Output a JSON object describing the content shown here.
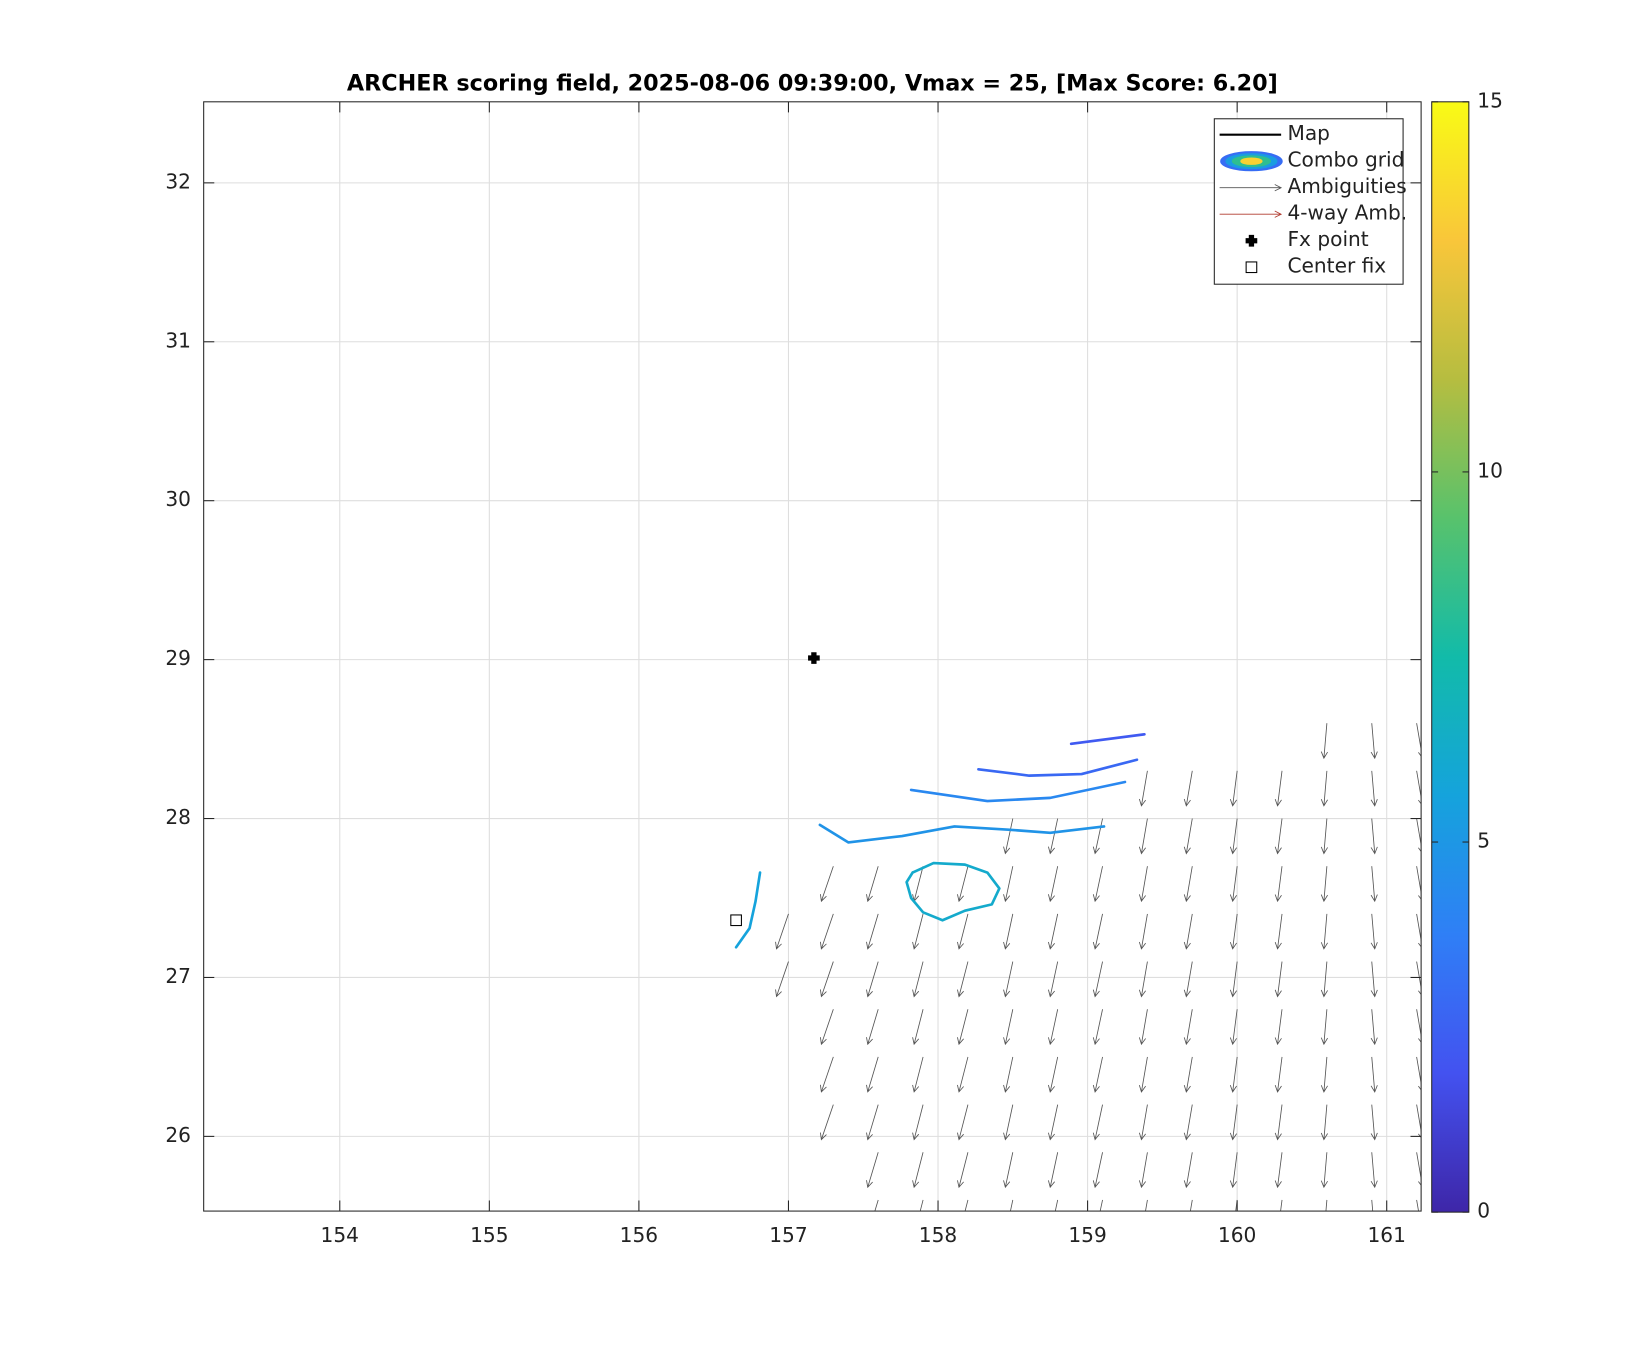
{
  "chart_data": {
    "type": "field",
    "title": "ARCHER scoring field, 2025-08-06 09:39:00, Vmax = 25, [Max Score: 6.20]",
    "xlim": [
      153.09,
      161.23
    ],
    "ylim": [
      25.53,
      32.51
    ],
    "xticks": [
      154,
      155,
      156,
      157,
      158,
      159,
      160,
      161
    ],
    "yticks": [
      26,
      27,
      28,
      29,
      30,
      31,
      32
    ],
    "grid": true,
    "colorbar": {
      "lim": [
        0,
        15
      ],
      "ticks": [
        0,
        5,
        10,
        15
      ],
      "colormap": [
        "#3e26a8",
        "#4352f0",
        "#2f7ff6",
        "#15a3dc",
        "#12bba9",
        "#58c26c",
        "#b6bd40",
        "#f9c63a",
        "#f9fb15"
      ]
    },
    "legend": {
      "position": "top-right",
      "entries": [
        "Map",
        "Combo grid",
        "Ambiguities",
        "4-way Amb.",
        "Fx point",
        "Center fix"
      ]
    },
    "ambiguity_color": "#555555",
    "four_way_color": "#b03a2e",
    "contours": [
      {
        "level": 2.2,
        "x": [
          158.89,
          159.38
        ],
        "y": [
          28.47,
          28.53
        ]
      },
      {
        "level": 2.8,
        "x": [
          158.27,
          158.61,
          158.96,
          159.33
        ],
        "y": [
          28.31,
          28.27,
          28.28,
          28.37
        ]
      },
      {
        "level": 4.2,
        "x": [
          157.82,
          158.33,
          158.75,
          159.25
        ],
        "y": [
          28.18,
          28.11,
          28.13,
          28.23
        ]
      },
      {
        "level": 4.8,
        "x": [
          157.21,
          157.4,
          157.76,
          158.11,
          158.47,
          158.75,
          159.11
        ],
        "y": [
          27.96,
          27.85,
          27.89,
          27.95,
          27.93,
          27.91,
          27.95
        ]
      },
      {
        "level": 5.6,
        "x": [
          156.81,
          156.78,
          156.74,
          156.65
        ],
        "y": [
          27.66,
          27.48,
          27.31,
          27.19
        ]
      },
      {
        "level": 6.2,
        "x": [
          157.83,
          157.97,
          158.18,
          158.33,
          158.41,
          158.36,
          158.18,
          158.03,
          157.9,
          157.82,
          157.79,
          157.83
        ],
        "y": [
          27.66,
          27.72,
          27.71,
          27.66,
          27.56,
          27.46,
          27.42,
          27.36,
          27.41,
          27.5,
          27.6,
          27.66
        ]
      }
    ],
    "ambiguities": [
      {
        "x": 157.0,
        "y": [
          27.1,
          27.4
        ],
        "u": -0.08,
        "v": -0.22
      },
      {
        "x": 157.3,
        "y": [
          26.2,
          26.5,
          26.8,
          27.1,
          27.4,
          27.7
        ],
        "u": -0.08,
        "v": -0.22
      },
      {
        "x": 157.6,
        "y": [
          25.6,
          25.9,
          26.2,
          26.5,
          26.8,
          27.1,
          27.4,
          27.7
        ],
        "u": -0.07,
        "v": -0.22
      },
      {
        "x": 157.9,
        "y": [
          25.6,
          25.9,
          26.2,
          26.5,
          26.8,
          27.1,
          27.4,
          27.7
        ],
        "u": -0.06,
        "v": -0.22
      },
      {
        "x": 158.2,
        "y": [
          25.6,
          25.9,
          26.2,
          26.5,
          26.8,
          27.1,
          27.4,
          27.7
        ],
        "u": -0.06,
        "v": -0.22
      },
      {
        "x": 158.5,
        "y": [
          25.6,
          25.9,
          26.2,
          26.5,
          26.8,
          27.1,
          27.4,
          27.7,
          28.0
        ],
        "u": -0.05,
        "v": -0.22
      },
      {
        "x": 158.8,
        "y": [
          25.6,
          25.9,
          26.2,
          26.5,
          26.8,
          27.1,
          27.4,
          27.7,
          28.0
        ],
        "u": -0.05,
        "v": -0.22
      },
      {
        "x": 159.1,
        "y": [
          25.6,
          25.9,
          26.2,
          26.5,
          26.8,
          27.1,
          27.4,
          27.7,
          28.0
        ],
        "u": -0.05,
        "v": -0.22
      },
      {
        "x": 159.4,
        "y": [
          25.6,
          25.9,
          26.2,
          26.5,
          26.8,
          27.1,
          27.4,
          27.7,
          28.0,
          28.3
        ],
        "u": -0.04,
        "v": -0.22
      },
      {
        "x": 159.7,
        "y": [
          25.6,
          25.9,
          26.2,
          26.5,
          26.8,
          27.1,
          27.4,
          27.7,
          28.0,
          28.3
        ],
        "u": -0.04,
        "v": -0.22
      },
      {
        "x": 160.0,
        "y": [
          25.6,
          25.9,
          26.2,
          26.5,
          26.8,
          27.1,
          27.4,
          27.7,
          28.0,
          28.3
        ],
        "u": -0.03,
        "v": -0.22
      },
      {
        "x": 160.3,
        "y": [
          25.6,
          25.9,
          26.2,
          26.5,
          26.8,
          27.1,
          27.4,
          27.7,
          28.0,
          28.3
        ],
        "u": -0.03,
        "v": -0.22
      },
      {
        "x": 160.6,
        "y": [
          25.6,
          25.9,
          26.2,
          26.5,
          26.8,
          27.1,
          27.4,
          27.7,
          28.0,
          28.3,
          28.6
        ],
        "u": -0.02,
        "v": -0.22
      },
      {
        "x": 160.9,
        "y": [
          25.6,
          25.9,
          26.2,
          26.5,
          26.8,
          27.1,
          27.4,
          27.7,
          28.0,
          28.3,
          28.6
        ],
        "u": 0.02,
        "v": -0.22
      },
      {
        "x": 161.2,
        "y": [
          25.6,
          25.9,
          26.2,
          26.5,
          26.8,
          27.1,
          27.4,
          27.7,
          28.0,
          28.3,
          28.6
        ],
        "u": 0.04,
        "v": -0.22
      }
    ],
    "fx_point": {
      "x": 157.17,
      "y": 29.01
    },
    "center_fix": {
      "x": 156.65,
      "y": 27.36
    }
  }
}
